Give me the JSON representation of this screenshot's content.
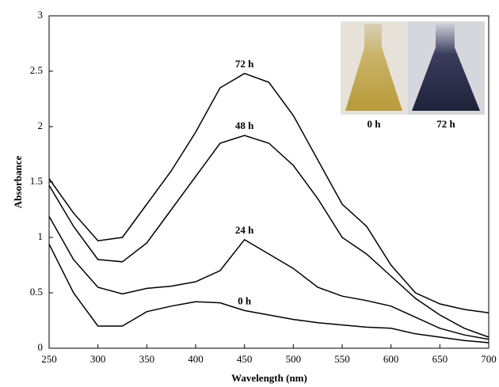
{
  "chart_data": {
    "type": "line",
    "x_label": "Wavelength (nm)",
    "y_label": "Absorbance",
    "x": [
      250,
      275,
      300,
      325,
      350,
      375,
      400,
      425,
      450,
      475,
      500,
      525,
      550,
      575,
      600,
      625,
      650,
      675,
      700
    ],
    "series": [
      {
        "name": "72 h",
        "color": "#000000",
        "values": [
          1.53,
          1.22,
          0.97,
          1.0,
          1.3,
          1.6,
          1.95,
          2.35,
          2.48,
          2.4,
          2.1,
          1.7,
          1.3,
          1.1,
          0.75,
          0.5,
          0.4,
          0.35,
          0.32
        ]
      },
      {
        "name": "48 h",
        "color": "#000000",
        "values": [
          1.47,
          1.1,
          0.8,
          0.78,
          0.95,
          1.25,
          1.55,
          1.85,
          1.92,
          1.85,
          1.65,
          1.35,
          1.0,
          0.85,
          0.65,
          0.45,
          0.3,
          0.18,
          0.1
        ]
      },
      {
        "name": "24 h",
        "color": "#000000",
        "values": [
          1.19,
          0.8,
          0.55,
          0.49,
          0.54,
          0.56,
          0.6,
          0.7,
          0.98,
          0.85,
          0.72,
          0.55,
          0.47,
          0.43,
          0.38,
          0.28,
          0.18,
          0.12,
          0.08
        ]
      },
      {
        "name": "0 h",
        "color": "#000000",
        "values": [
          0.94,
          0.5,
          0.2,
          0.2,
          0.33,
          0.38,
          0.42,
          0.41,
          0.34,
          0.3,
          0.26,
          0.23,
          0.21,
          0.19,
          0.18,
          0.13,
          0.1,
          0.07,
          0.05
        ]
      }
    ],
    "xlim": [
      250,
      700
    ],
    "xticks": [
      250,
      300,
      350,
      400,
      450,
      500,
      550,
      600,
      650,
      700
    ],
    "ylim": [
      0,
      3
    ],
    "yticks": [
      0,
      0.5,
      1,
      1.5,
      2,
      2.5,
      3
    ],
    "grid": false,
    "inset_labels": [
      "0 h",
      "72 h"
    ]
  }
}
